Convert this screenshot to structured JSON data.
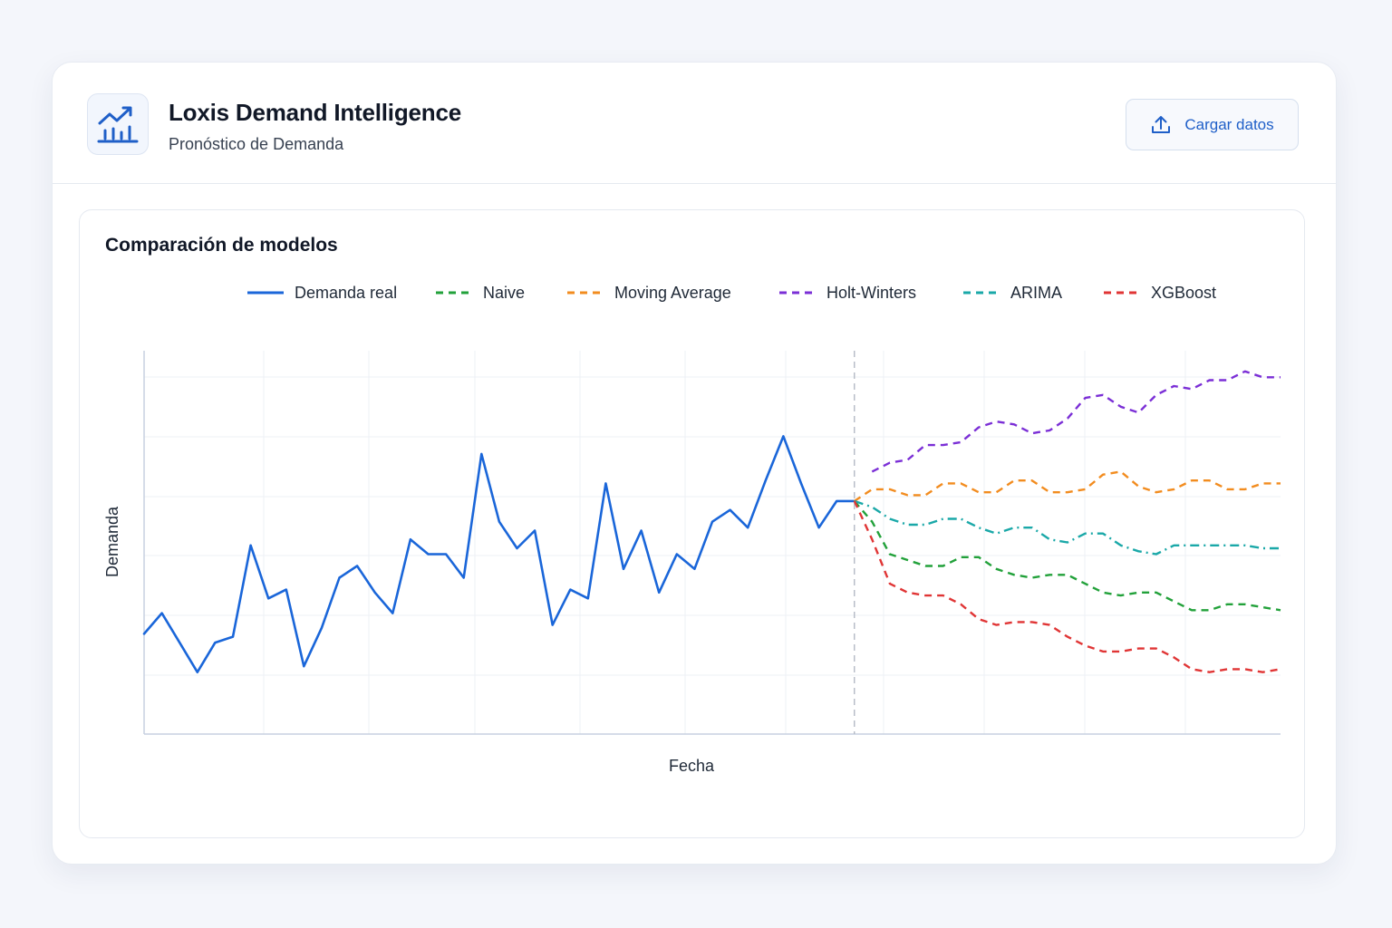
{
  "header": {
    "title": "Loxis Demand Intelligence",
    "subtitle": "Pronóstico de Demanda",
    "logo_icon": "trend-chart-icon",
    "upload_button": {
      "label": "Cargar datos",
      "icon": "upload-icon"
    }
  },
  "panel": {
    "title": "Comparación de modelos"
  },
  "colors": {
    "actual": "#1a66d9",
    "naive": "#22a13a",
    "moving_average": "#f28c1f",
    "holt_winters": "#7b2fd6",
    "arima": "#1aa8a8",
    "xgboost": "#e03535",
    "accent": "#1f5fc8"
  },
  "chart_data": {
    "type": "line",
    "xlabel": "Fecha",
    "ylabel": "Demanda",
    "ylim": [
      0,
      130
    ],
    "grid": true,
    "legend_position": "top",
    "forecast_start_index": 40,
    "x_range": [
      0,
      64
    ],
    "series": [
      {
        "name": "Demanda real",
        "key": "actual",
        "style": "solid",
        "x": [
          0,
          1,
          2,
          3,
          4,
          5,
          6,
          7,
          8,
          9,
          10,
          11,
          12,
          13,
          14,
          15,
          16,
          17,
          18,
          19,
          20,
          21,
          22,
          23,
          24,
          25,
          26,
          27,
          28,
          29,
          30,
          31,
          32,
          33,
          34,
          35,
          36,
          37,
          38,
          39,
          40
        ],
        "values": [
          34,
          41,
          31,
          21,
          31,
          33,
          64,
          46,
          49,
          23,
          36,
          53,
          57,
          48,
          41,
          66,
          61,
          61,
          53,
          95,
          72,
          63,
          69,
          37,
          49,
          46,
          85,
          56,
          69,
          48,
          61,
          56,
          72,
          76,
          70,
          86,
          101,
          85,
          70,
          79,
          79
        ]
      },
      {
        "name": "Naive",
        "key": "naive",
        "style": "dashed",
        "x": [
          40,
          41,
          42,
          43,
          44,
          45,
          46,
          47,
          48,
          49,
          50,
          51,
          52,
          53,
          54,
          55,
          56,
          57,
          58,
          59,
          60,
          61,
          62,
          63,
          64
        ],
        "values": [
          79,
          72,
          61,
          59,
          57,
          57,
          60,
          60,
          56,
          54,
          53,
          54,
          54,
          51,
          48,
          47,
          48,
          48,
          45,
          42,
          42,
          44,
          44,
          43,
          42
        ]
      },
      {
        "name": "Moving Average",
        "key": "moving_average",
        "style": "dashed",
        "x": [
          40,
          41,
          42,
          43,
          44,
          45,
          46,
          47,
          48,
          49,
          50,
          51,
          52,
          53,
          54,
          55,
          56,
          57,
          58,
          59,
          60,
          61,
          62,
          63,
          64
        ],
        "values": [
          79,
          83,
          83,
          81,
          81,
          85,
          85,
          82,
          82,
          86,
          86,
          82,
          82,
          83,
          88,
          89,
          84,
          82,
          83,
          86,
          86,
          83,
          83,
          85,
          85
        ]
      },
      {
        "name": "Holt-Winters",
        "key": "holt_winters",
        "style": "dashed",
        "x": [
          41,
          42,
          43,
          44,
          45,
          46,
          47,
          48,
          49,
          50,
          51,
          52,
          53,
          54,
          55,
          56,
          57,
          58,
          59,
          60,
          61,
          62,
          63,
          64
        ],
        "values": [
          89,
          92,
          93,
          98,
          98,
          99,
          104,
          106,
          105,
          102,
          103,
          107,
          114,
          115,
          111,
          109,
          115,
          118,
          117,
          120,
          120,
          123,
          121,
          121
        ]
      },
      {
        "name": "ARIMA",
        "key": "arima",
        "style": "dashdot",
        "x": [
          40,
          41,
          42,
          43,
          44,
          45,
          46,
          47,
          48,
          49,
          50,
          51,
          52,
          53,
          54,
          55,
          56,
          57,
          58,
          59,
          60,
          61,
          62,
          63,
          64
        ],
        "values": [
          79,
          77,
          73,
          71,
          71,
          73,
          73,
          70,
          68,
          70,
          70,
          66,
          65,
          68,
          68,
          64,
          62,
          61,
          64,
          64,
          64,
          64,
          64,
          63,
          63
        ]
      },
      {
        "name": "XGBoost",
        "key": "xgboost",
        "style": "dashed",
        "x": [
          40,
          41,
          42,
          43,
          44,
          45,
          46,
          47,
          48,
          49,
          50,
          51,
          52,
          53,
          54,
          55,
          56,
          57,
          58,
          59,
          60,
          61,
          62,
          63,
          64
        ],
        "values": [
          79,
          66,
          51,
          48,
          47,
          47,
          44,
          39,
          37,
          38,
          38,
          37,
          33,
          30,
          28,
          28,
          29,
          29,
          26,
          22,
          21,
          22,
          22,
          21,
          22
        ]
      }
    ]
  }
}
